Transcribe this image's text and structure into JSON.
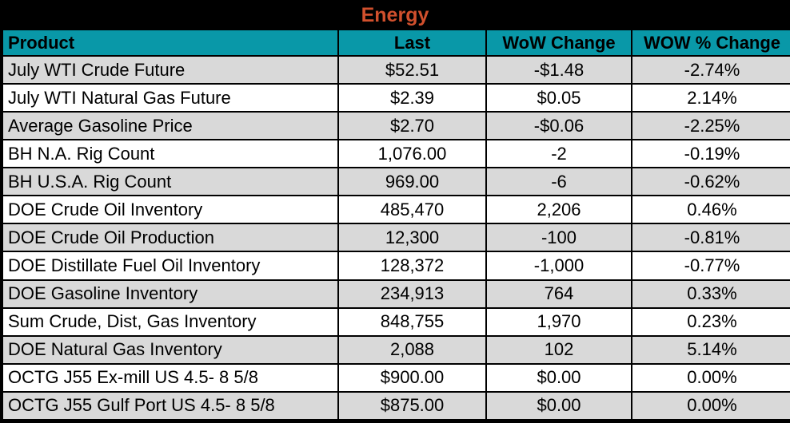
{
  "title": "Energy",
  "colors": {
    "title_text": "#D1502D",
    "title_bg": "#000000",
    "header_bg": "#0998A8",
    "header_text": "#000000",
    "row_alt_bg": "#D9D9D9",
    "row_bg": "#FFFFFF",
    "border": "#000000"
  },
  "chart_data": {
    "type": "table",
    "title": "Energy",
    "columns": [
      "Product",
      "Last",
      "WoW Change",
      "WOW % Change"
    ],
    "rows": [
      [
        "July WTI Crude Future",
        "$52.51",
        "-$1.48",
        "-2.74%"
      ],
      [
        "July WTI Natural Gas Future",
        "$2.39",
        "$0.05",
        "2.14%"
      ],
      [
        "Average Gasoline Price",
        "$2.70",
        "-$0.06",
        "-2.25%"
      ],
      [
        "BH N.A. Rig Count",
        "1,076.00",
        "-2",
        "-0.19%"
      ],
      [
        "BH U.S.A. Rig Count",
        "969.00",
        "-6",
        "-0.62%"
      ],
      [
        "DOE Crude Oil Inventory",
        "485,470",
        "2,206",
        "0.46%"
      ],
      [
        "DOE Crude Oil Production",
        "12,300",
        "-100",
        "-0.81%"
      ],
      [
        "DOE Distillate Fuel Oil Inventory",
        "128,372",
        "-1,000",
        "-0.77%"
      ],
      [
        "DOE Gasoline Inventory",
        "234,913",
        "764",
        "0.33%"
      ],
      [
        "Sum Crude, Dist, Gas Inventory",
        "848,755",
        "1,970",
        "0.23%"
      ],
      [
        "DOE Natural Gas Inventory",
        "2,088",
        "102",
        "5.14%"
      ],
      [
        "OCTG J55 Ex-mill US 4.5- 8 5/8",
        "$900.00",
        "$0.00",
        "0.00%"
      ],
      [
        "OCTG J55 Gulf Port US 4.5- 8 5/8",
        "$875.00",
        "$0.00",
        "0.00%"
      ]
    ]
  }
}
